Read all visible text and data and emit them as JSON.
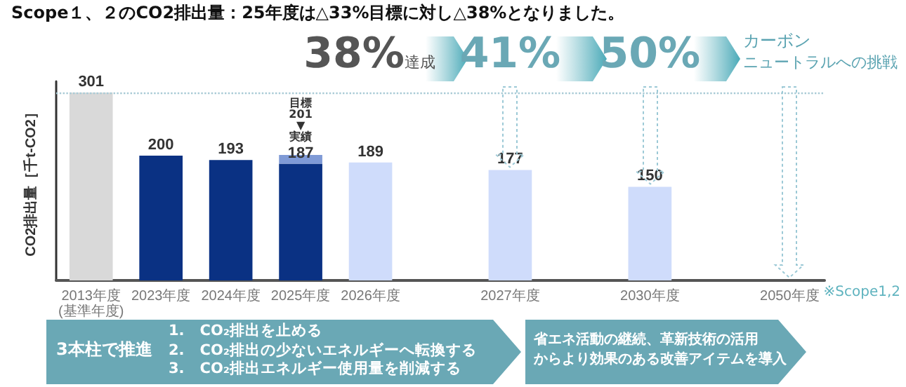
{
  "chart_data": {
    "type": "bar",
    "title": "Scope１、２のCO2排出量：25年度は△33%目標に対し△38%となりました。",
    "ylabel": "CO2排出量［千t-CO2］",
    "categories": [
      "2013年度\n(基準年度)",
      "2023年度",
      "2024年度",
      "2025年度",
      "2026年度",
      null,
      "2027年度",
      null,
      "2030年度",
      null,
      "2050年度"
    ],
    "stacked": true,
    "series": [
      {
        "values": [
          301,
          200,
          193,
          187,
          189,
          null,
          177,
          null,
          150,
          null,
          null
        ],
        "colors": [
          "#d9d9d9",
          "#0a3183",
          "#0a3183",
          "#0a3183",
          "#cfdcfb",
          "#cfdcfb",
          "#cfdcfb",
          "#cfdcfb",
          "#cfdcfb",
          "#cfdcfb",
          "#cfdcfb"
        ],
        "value_labels": [
          "301",
          "200",
          "193",
          "187",
          "189",
          null,
          "177",
          null,
          "150",
          null,
          null
        ]
      },
      {
        "color": "#7f9ad6",
        "values": [
          null,
          null,
          null,
          14,
          null,
          null,
          null,
          null,
          null,
          null,
          null
        ]
      }
    ],
    "ref_lines": [
      {
        "axis": "y",
        "value": 301,
        "color": "#a9cbd6",
        "line_style": "dotted"
      }
    ],
    "annotations": [
      {
        "text": "目標\n201\n▼\n実績",
        "x": "2025年度",
        "y": 201
      },
      "38%達成",
      "41%",
      "50%",
      "カーボン",
      "ニュートラルへの挑戦",
      "※Scope1,2",
      "3本柱で推進",
      "1.　CO₂排出を止める\n2.　CO₂排出の少ないエネルギーへ転換する\n3.　CO₂排出エネルギー使用量を削減する",
      "省エネ活動の継続、革新技術の活用",
      "からより効果のある改善アイテムを導入"
    ],
    "grid": false,
    "tick_labels": "x"
  }
}
